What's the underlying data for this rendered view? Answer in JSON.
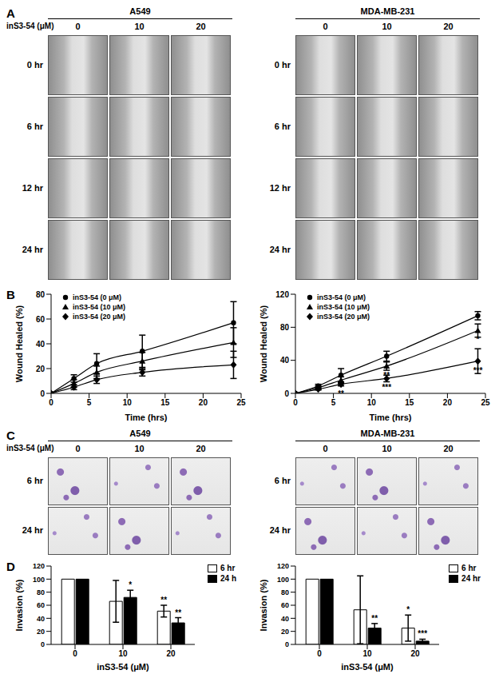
{
  "panels": [
    "A",
    "B",
    "C",
    "D"
  ],
  "micrographs": [
    {
      "treatment_label": "inS3-54 (μM)",
      "doses": [
        "0",
        "10",
        "20"
      ],
      "groups": [
        "A549",
        "MDA-MB-231"
      ],
      "rows": [
        "0 hr",
        "6 hr",
        "12 hr",
        "24 hr"
      ]
    },
    {
      "treatment_label": "inS3-54 (μM)",
      "doses": [
        "0",
        "10",
        "20"
      ],
      "groups": [
        "A549",
        "MDA-MB-231"
      ],
      "rows": [
        "6 hr",
        "24 hr"
      ]
    }
  ],
  "chart_data": [
    {
      "type": "line",
      "x": [
        0,
        3,
        6,
        12,
        24
      ],
      "xlim": [
        0,
        25
      ],
      "xticks": [
        0,
        5,
        10,
        15,
        20,
        25
      ],
      "ylim": [
        0,
        80
      ],
      "yticks": [
        0,
        20,
        40,
        60,
        80
      ],
      "x_label": "Time (hrs)",
      "y_label": "Wound Healed (%)",
      "legend": "upper left",
      "series": [
        {
          "name": "inS3-54 (0 μM)",
          "color": "#000000",
          "marker": "circle",
          "values": [
            0,
            12,
            24,
            34,
            57
          ],
          "errors": [
            0,
            3,
            8,
            13,
            17
          ],
          "significance": [
            null,
            null,
            null,
            null,
            null
          ]
        },
        {
          "name": "inS3-54 (10 μM)",
          "color": "#000000",
          "marker": "triangle",
          "values": [
            0,
            8,
            17,
            26,
            41
          ],
          "errors": [
            0,
            3,
            5,
            7,
            12
          ],
          "significance": [
            null,
            null,
            null,
            null,
            null
          ]
        },
        {
          "name": "inS3-54 (20 μM)",
          "color": "#000000",
          "marker": "diamond",
          "values": [
            0,
            5,
            11,
            17,
            23
          ],
          "errors": [
            0,
            2,
            3,
            3,
            11
          ],
          "significance": [
            null,
            null,
            null,
            null,
            null
          ]
        }
      ]
    },
    {
      "type": "line",
      "x": [
        0,
        3,
        6,
        12,
        24
      ],
      "xlim": [
        0,
        25
      ],
      "xticks": [
        0,
        5,
        10,
        15,
        20,
        25
      ],
      "ylim": [
        0,
        120
      ],
      "yticks": [
        0,
        40,
        80,
        120
      ],
      "x_label": "Time (hrs)",
      "y_label": "Wound Healed (%)",
      "legend": "upper left",
      "series": [
        {
          "name": "inS3-54 (0 μM)",
          "color": "#000000",
          "marker": "circle",
          "values": [
            0,
            9,
            22,
            45,
            94
          ],
          "errors": [
            0,
            2,
            8,
            6,
            5
          ],
          "significance": [
            null,
            null,
            null,
            null,
            null
          ]
        },
        {
          "name": "inS3-54 (10 μM)",
          "color": "#000000",
          "marker": "triangle",
          "values": [
            0,
            7,
            16,
            33,
            76
          ],
          "errors": [
            0,
            2,
            4,
            5,
            8
          ],
          "significance": [
            null,
            null,
            null,
            "**",
            "*"
          ]
        },
        {
          "name": "inS3-54 (20 μM)",
          "color": "#000000",
          "marker": "diamond",
          "values": [
            0,
            5,
            11,
            18,
            39
          ],
          "errors": [
            0,
            1,
            2,
            4,
            15
          ],
          "significance": [
            null,
            null,
            "**",
            "***",
            "***"
          ]
        }
      ]
    },
    {
      "type": "bar",
      "categories": [
        "0",
        "10",
        "20"
      ],
      "ylim": [
        0,
        120
      ],
      "yticks": [
        0,
        20,
        40,
        60,
        80,
        100,
        120
      ],
      "x_label": "inS3-54 (μM)",
      "y_label": "Invasion (%)",
      "legend": "upper right",
      "series": [
        {
          "name": "6 hr",
          "color": "#ffffff",
          "values": [
            100,
            66,
            51
          ],
          "errors": [
            0,
            32,
            9
          ],
          "significance": [
            null,
            null,
            "**"
          ]
        },
        {
          "name": "24 h",
          "color": "#000000",
          "values": [
            100,
            72,
            33
          ],
          "errors": [
            0,
            11,
            8
          ],
          "significance": [
            null,
            "*",
            "**"
          ]
        }
      ]
    },
    {
      "type": "bar",
      "categories": [
        "0",
        "10",
        "20"
      ],
      "ylim": [
        0,
        120
      ],
      "yticks": [
        0,
        20,
        40,
        60,
        80,
        100,
        120
      ],
      "x_label": "inS3-54 (μM)",
      "y_label": "Invasion (%)",
      "legend": "upper right",
      "series": [
        {
          "name": "6 hr",
          "color": "#ffffff",
          "values": [
            100,
            53,
            25
          ],
          "errors": [
            0,
            52,
            20
          ],
          "significance": [
            null,
            null,
            "*"
          ]
        },
        {
          "name": "24 hr",
          "color": "#000000",
          "values": [
            100,
            25,
            5
          ],
          "errors": [
            0,
            7,
            3
          ],
          "significance": [
            null,
            "**",
            "***"
          ]
        }
      ]
    }
  ]
}
